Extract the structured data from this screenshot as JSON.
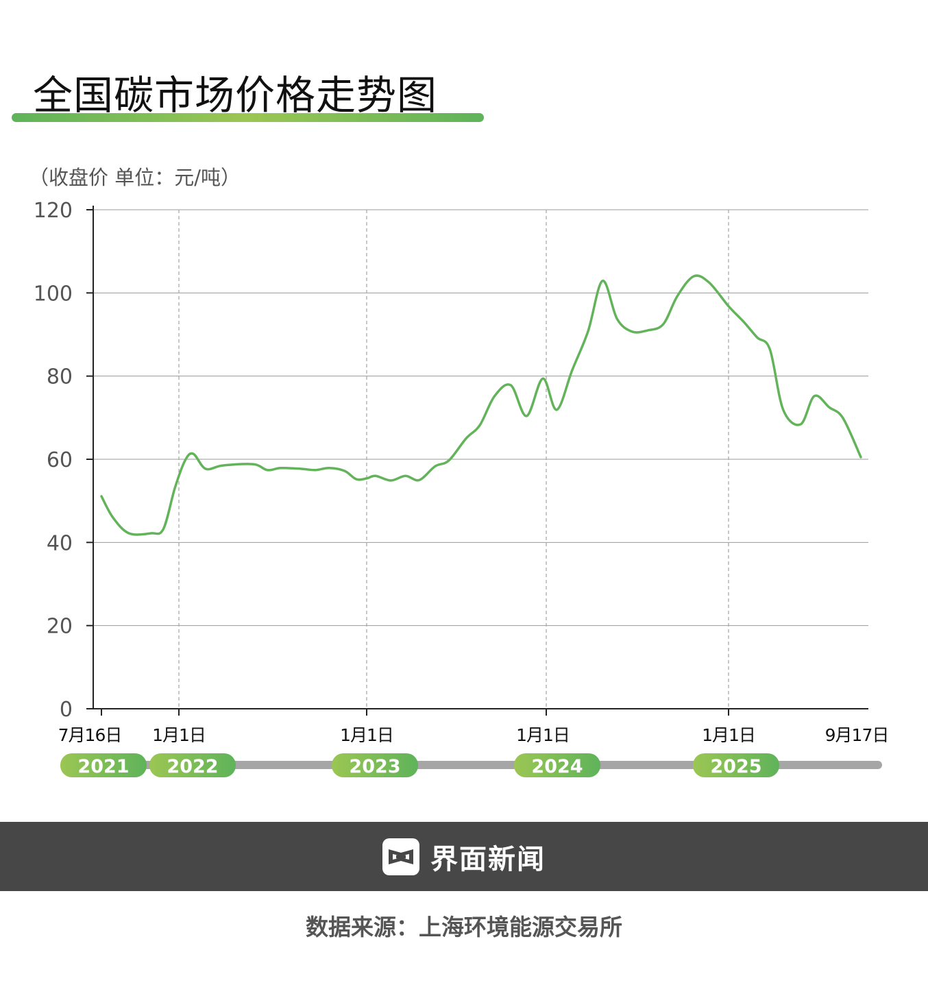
{
  "title": "全国碳市场价格走势图",
  "unit_label": "（收盘价 单位：元/吨）",
  "colors": {
    "line": "#62b35a",
    "accent_start": "#9bc653",
    "accent_end": "#5fb35a",
    "timeline": "#a6a6a6",
    "footer_bg": "#474747"
  },
  "chart_data": {
    "type": "line",
    "title": "全国碳市场价格走势图",
    "ylabel": "（收盘价 单位：元/吨）",
    "ylim": [
      0,
      120
    ],
    "yticks": [
      "0",
      "20",
      "40",
      "60",
      "80",
      "100",
      "120"
    ],
    "grid": true,
    "x_ticks": [
      {
        "date": "2021-07-16",
        "label": "7月16日"
      },
      {
        "date": "2022-01-01",
        "label": "1月1日"
      },
      {
        "date": "2023-01-01",
        "label": "1月1日"
      },
      {
        "date": "2024-01-01",
        "label": "1月1日"
      },
      {
        "date": "2025-01-01",
        "label": "1月1日"
      },
      {
        "date": "2025-09-17",
        "label": "9月17日"
      }
    ],
    "years": [
      "2021",
      "2022",
      "2023",
      "2024",
      "2025"
    ],
    "series": [
      {
        "points": [
          [
            "2021-07-16",
            51.1
          ],
          [
            "2021-08-10",
            46.0
          ],
          [
            "2021-09-14",
            42.2
          ],
          [
            "2021-11-01",
            42.2
          ],
          [
            "2021-11-28",
            43.2
          ],
          [
            "2021-12-23",
            53.0
          ],
          [
            "2022-01-13",
            59.7
          ],
          [
            "2022-01-29",
            61.3
          ],
          [
            "2022-02-22",
            57.7
          ],
          [
            "2022-03-27",
            58.5
          ],
          [
            "2022-05-26",
            58.8
          ],
          [
            "2022-06-22",
            57.4
          ],
          [
            "2022-07-18",
            57.9
          ],
          [
            "2022-08-27",
            57.7
          ],
          [
            "2022-09-23",
            57.4
          ],
          [
            "2022-10-20",
            57.9
          ],
          [
            "2022-11-19",
            57.2
          ],
          [
            "2022-12-12",
            55.2
          ],
          [
            "2023-01-01",
            55.4
          ],
          [
            "2023-01-19",
            56.0
          ],
          [
            "2023-02-19",
            54.9
          ],
          [
            "2023-03-21",
            56.0
          ],
          [
            "2023-04-18",
            55.0
          ],
          [
            "2023-05-20",
            58.3
          ],
          [
            "2023-06-17",
            59.7
          ],
          [
            "2023-07-22",
            65.0
          ],
          [
            "2023-08-19",
            68.2
          ],
          [
            "2023-09-18",
            75.2
          ],
          [
            "2023-10-21",
            77.8
          ],
          [
            "2023-11-22",
            70.4
          ],
          [
            "2023-12-25",
            79.4
          ],
          [
            "2024-01-22",
            71.9
          ],
          [
            "2024-02-22",
            81.4
          ],
          [
            "2024-03-25",
            90.8
          ],
          [
            "2024-04-23",
            102.9
          ],
          [
            "2024-05-22",
            93.8
          ],
          [
            "2024-06-21",
            90.7
          ],
          [
            "2024-07-23",
            91.0
          ],
          [
            "2024-08-23",
            92.5
          ],
          [
            "2024-09-20",
            99.2
          ],
          [
            "2024-10-23",
            104.0
          ],
          [
            "2024-11-23",
            102.5
          ],
          [
            "2025-01-01",
            96.8
          ],
          [
            "2025-01-31",
            93.0
          ],
          [
            "2025-02-26",
            89.3
          ],
          [
            "2025-03-23",
            86.4
          ],
          [
            "2025-04-18",
            71.9
          ],
          [
            "2025-05-22",
            68.4
          ],
          [
            "2025-06-18",
            75.2
          ],
          [
            "2025-07-17",
            72.5
          ],
          [
            "2025-08-13",
            69.9
          ],
          [
            "2025-09-17",
            60.5
          ]
        ]
      }
    ]
  },
  "footer": {
    "brand": "界面新闻",
    "logo_icon": "jiemian-logo-icon"
  },
  "source": "数据来源：上海环境能源交易所"
}
